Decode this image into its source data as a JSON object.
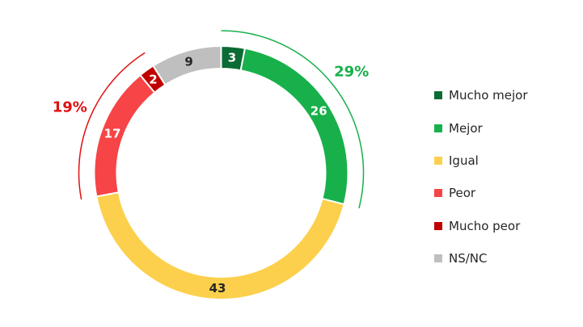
{
  "chart_data": {
    "type": "pie",
    "title": "",
    "categories": [
      "Mucho mejor",
      "Mejor",
      "Igual",
      "Peor",
      "Mucho peor",
      "NS/NC"
    ],
    "values": [
      3,
      26,
      43,
      17,
      2,
      9
    ],
    "colors": [
      "#0b6b34",
      "#18b04a",
      "#fcd04c",
      "#f64447",
      "#c00000",
      "#bfbfbf"
    ],
    "label_colors": [
      "#ffffff",
      "#ffffff",
      "#262626",
      "#ffffff",
      "#ffffff",
      "#262626"
    ],
    "groups": [
      {
        "label": "29%",
        "members": [
          0,
          1
        ],
        "color": "#18b04a"
      },
      {
        "label": "19%",
        "members": [
          3,
          4
        ],
        "color": "#e01010"
      }
    ],
    "legend": {
      "position": "right"
    }
  }
}
